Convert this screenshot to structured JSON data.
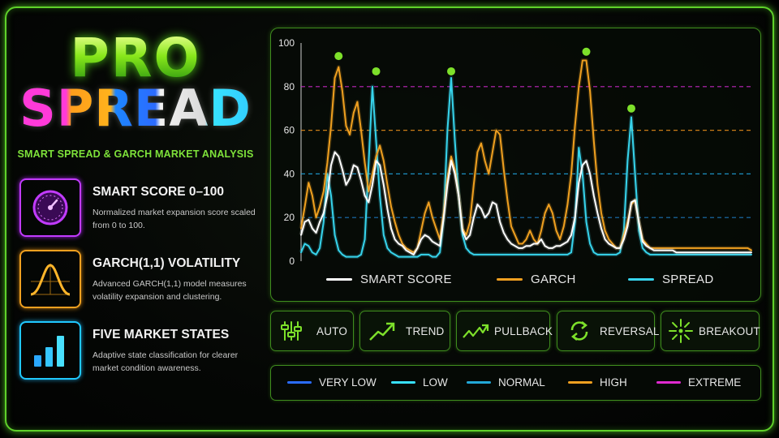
{
  "logo": {
    "line1": "PRO",
    "line2": "SPREAD"
  },
  "tagline": "SMART SPREAD & GARCH MARKET ANALYSIS",
  "features": [
    {
      "title": "SMART SCORE 0–100",
      "desc": "Normalized market expansion score scaled from 0 to 100.",
      "icon": "gauge-icon",
      "color": "#c23bff"
    },
    {
      "title": "GARCH(1,1) VOLATILITY",
      "desc": "Advanced GARCH(1,1) model measures volatility expansion and clustering.",
      "icon": "bell-curve-icon",
      "color": "#f0a020"
    },
    {
      "title": "FIVE MARKET STATES",
      "desc": "Adaptive state classification for clearer market condition awareness.",
      "icon": "bar-chart-icon",
      "color": "#20c8ff"
    }
  ],
  "modes": [
    {
      "label": "AUTO",
      "icon": "sliders-icon"
    },
    {
      "label": "TREND",
      "icon": "trend-arrow-icon"
    },
    {
      "label": "PULLBACK",
      "icon": "pullback-arrow-icon"
    },
    {
      "label": "REVERSAL",
      "icon": "reversal-arrows-icon"
    },
    {
      "label": "BREAKOUT",
      "icon": "breakout-burst-icon"
    }
  ],
  "states": [
    {
      "label": "VERY LOW",
      "color": "#2a6cff"
    },
    {
      "label": "LOW",
      "color": "#37e0ff"
    },
    {
      "label": "NORMAL",
      "color": "#22a8d8"
    },
    {
      "label": "HIGH",
      "color": "#f0a020"
    },
    {
      "label": "EXTREME",
      "color": "#e02ad0"
    }
  ],
  "chart_data": {
    "type": "line",
    "ylim": [
      0,
      100
    ],
    "yticks": [
      0,
      20,
      40,
      60,
      80,
      100
    ],
    "grid": false,
    "legend_position": "bottom",
    "thresholds": [
      {
        "value": 80,
        "color": "#d22ad0"
      },
      {
        "value": 60,
        "color": "#e0891a"
      },
      {
        "value": 40,
        "color": "#1fa0d8"
      },
      {
        "value": 20,
        "color": "#1f7fc8"
      }
    ],
    "x": [
      0,
      1,
      2,
      3,
      4,
      5,
      6,
      7,
      8,
      9,
      10,
      11,
      12,
      13,
      14,
      15,
      16,
      17,
      18,
      19,
      20,
      21,
      22,
      23,
      24,
      25,
      26,
      27,
      28,
      29,
      30,
      31,
      32,
      33,
      34,
      35,
      36,
      37,
      38,
      39,
      40,
      41,
      42,
      43,
      44,
      45,
      46,
      47,
      48,
      49,
      50,
      51,
      52,
      53,
      54,
      55,
      56,
      57,
      58,
      59,
      60,
      61,
      62,
      63,
      64,
      65,
      66,
      67,
      68,
      69,
      70,
      71,
      72,
      73,
      74,
      75,
      76,
      77,
      78,
      79,
      80,
      81,
      82,
      83,
      84,
      85,
      86,
      87,
      88,
      89,
      90,
      91,
      92,
      93,
      94,
      95,
      96,
      97,
      98,
      99,
      100,
      101,
      102,
      103,
      104,
      105,
      106,
      107,
      108,
      109,
      110,
      111,
      112,
      113,
      114,
      115,
      116,
      117,
      118,
      119,
      120
    ],
    "series": [
      {
        "name": "SMART SCORE",
        "color": "#ffffff",
        "values": [
          12,
          18,
          19,
          15,
          13,
          18,
          22,
          30,
          44,
          50,
          48,
          42,
          35,
          38,
          44,
          43,
          37,
          30,
          27,
          35,
          46,
          44,
          35,
          24,
          15,
          10,
          8,
          7,
          5,
          4,
          3,
          6,
          10,
          12,
          11,
          9,
          8,
          7,
          20,
          35,
          46,
          40,
          30,
          14,
          10,
          12,
          20,
          26,
          24,
          20,
          22,
          27,
          26,
          18,
          13,
          10,
          8,
          7,
          6,
          6,
          7,
          7,
          8,
          8,
          10,
          7,
          6,
          6,
          7,
          7,
          8,
          9,
          12,
          20,
          36,
          44,
          46,
          40,
          30,
          22,
          15,
          10,
          8,
          7,
          6,
          6,
          10,
          16,
          27,
          28,
          18,
          9,
          7,
          6,
          5,
          5,
          5,
          5,
          5,
          5,
          4,
          4,
          4,
          4,
          4,
          4,
          4,
          4,
          4,
          4,
          4,
          4,
          4,
          4,
          4,
          4,
          4,
          4,
          4,
          4,
          4
        ]
      },
      {
        "name": "GARCH",
        "color": "#f0a020",
        "values": [
          15,
          25,
          36,
          30,
          20,
          25,
          32,
          45,
          62,
          84,
          89,
          78,
          62,
          58,
          68,
          73,
          60,
          45,
          32,
          40,
          48,
          53,
          46,
          35,
          25,
          18,
          12,
          8,
          6,
          5,
          4,
          6,
          14,
          22,
          27,
          20,
          15,
          10,
          22,
          38,
          48,
          42,
          30,
          15,
          12,
          18,
          35,
          50,
          54,
          46,
          40,
          50,
          60,
          58,
          42,
          28,
          16,
          12,
          8,
          8,
          10,
          14,
          10,
          8,
          14,
          22,
          26,
          22,
          14,
          10,
          16,
          26,
          40,
          62,
          80,
          92,
          92,
          78,
          55,
          35,
          22,
          14,
          10,
          8,
          6,
          6,
          12,
          18,
          26,
          28,
          18,
          10,
          8,
          6,
          6,
          6,
          6,
          6,
          6,
          6,
          6,
          6,
          6,
          6,
          6,
          6,
          6,
          6,
          6,
          6,
          6,
          6,
          6,
          6,
          6,
          6,
          6,
          6,
          6,
          6,
          5
        ]
      },
      {
        "name": "SPREAD",
        "color": "#37d4ec",
        "values": [
          4,
          8,
          7,
          4,
          3,
          6,
          18,
          40,
          30,
          12,
          5,
          3,
          2,
          2,
          2,
          2,
          3,
          10,
          45,
          80,
          55,
          30,
          12,
          6,
          4,
          3,
          2,
          2,
          2,
          2,
          2,
          2,
          3,
          3,
          3,
          2,
          2,
          4,
          20,
          60,
          84,
          55,
          30,
          12,
          6,
          4,
          3,
          3,
          3,
          3,
          3,
          3,
          3,
          3,
          3,
          3,
          3,
          3,
          3,
          3,
          3,
          3,
          3,
          3,
          3,
          3,
          3,
          3,
          3,
          3,
          3,
          3,
          4,
          18,
          52,
          40,
          18,
          8,
          4,
          3,
          3,
          3,
          3,
          3,
          3,
          4,
          14,
          46,
          66,
          40,
          14,
          6,
          4,
          3,
          3,
          3,
          3,
          3,
          3,
          3,
          3,
          3,
          3,
          3,
          3,
          3,
          3,
          3,
          3,
          3,
          3,
          3,
          3,
          3,
          3,
          3,
          3,
          3,
          3,
          3,
          3
        ]
      }
    ],
    "peak_markers": [
      {
        "x": 10,
        "y": 94,
        "color": "#7de02a"
      },
      {
        "x": 20,
        "y": 87,
        "color": "#7de02a"
      },
      {
        "x": 40,
        "y": 87,
        "color": "#7de02a"
      },
      {
        "x": 76,
        "y": 96,
        "color": "#7de02a"
      },
      {
        "x": 88,
        "y": 70,
        "color": "#7de02a"
      }
    ]
  }
}
